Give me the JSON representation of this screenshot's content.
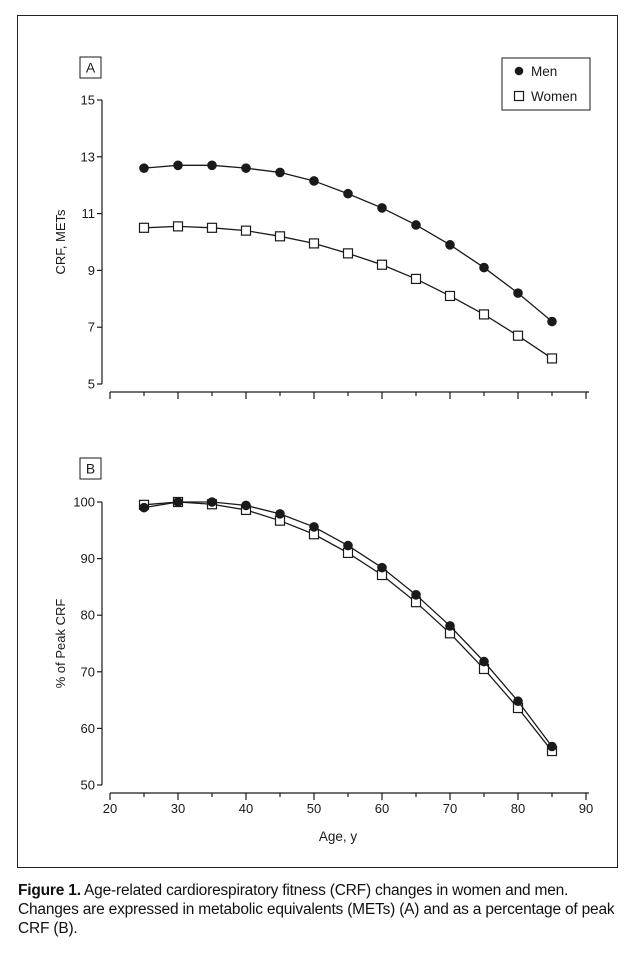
{
  "chart_data": [
    {
      "type": "line",
      "panel_label": "A",
      "x": [
        25,
        30,
        35,
        40,
        45,
        50,
        55,
        60,
        65,
        70,
        75,
        80,
        85
      ],
      "series": [
        {
          "name": "Men",
          "marker": "filled-circle",
          "values": [
            12.6,
            12.7,
            12.7,
            12.6,
            12.45,
            12.15,
            11.7,
            11.2,
            10.6,
            9.9,
            9.1,
            8.2,
            7.2
          ]
        },
        {
          "name": "Women",
          "marker": "open-square",
          "values": [
            10.5,
            10.55,
            10.5,
            10.4,
            10.2,
            9.95,
            9.6,
            9.2,
            8.7,
            8.1,
            7.45,
            6.7,
            5.9
          ]
        }
      ],
      "ylabel": "CRF, METs",
      "xlim": [
        20,
        90
      ],
      "ylim": [
        5,
        15
      ],
      "yticks": [
        "15",
        "13",
        "11",
        "9",
        "7",
        "5"
      ],
      "legend": "top-right",
      "grid": false
    },
    {
      "type": "line",
      "panel_label": "B",
      "x": [
        25,
        30,
        35,
        40,
        45,
        50,
        55,
        60,
        65,
        70,
        75,
        80,
        85
      ],
      "series": [
        {
          "name": "Men",
          "marker": "filled-circle",
          "values": [
            99,
            100,
            100,
            99.4,
            97.9,
            95.6,
            92.3,
            88.4,
            83.6,
            78.1,
            71.8,
            64.8,
            56.8
          ]
        },
        {
          "name": "Women",
          "marker": "open-square",
          "values": [
            99.5,
            100,
            99.6,
            98.6,
            96.7,
            94.3,
            91,
            87.1,
            82.3,
            76.8,
            70.5,
            63.6,
            56
          ]
        }
      ],
      "ylabel": "% of Peak CRF",
      "xlabel": "Age, y",
      "xlim": [
        20,
        90
      ],
      "ylim": [
        50,
        100
      ],
      "xticks": [
        "20",
        "30",
        "40",
        "50",
        "60",
        "70",
        "80",
        "90"
      ],
      "yticks": [
        "100",
        "90",
        "80",
        "70",
        "60",
        "50"
      ],
      "grid": false
    }
  ],
  "caption": {
    "label": "Figure 1.",
    "text": " Age-related cardiorespiratory fitness (CRF) changes in women and men. Changes are expressed in metabolic equivalents (METs) (A) and as a percentage of peak CRF (B)."
  },
  "colors": {
    "ink": "#1a1a1a",
    "background": "#ffffff"
  }
}
